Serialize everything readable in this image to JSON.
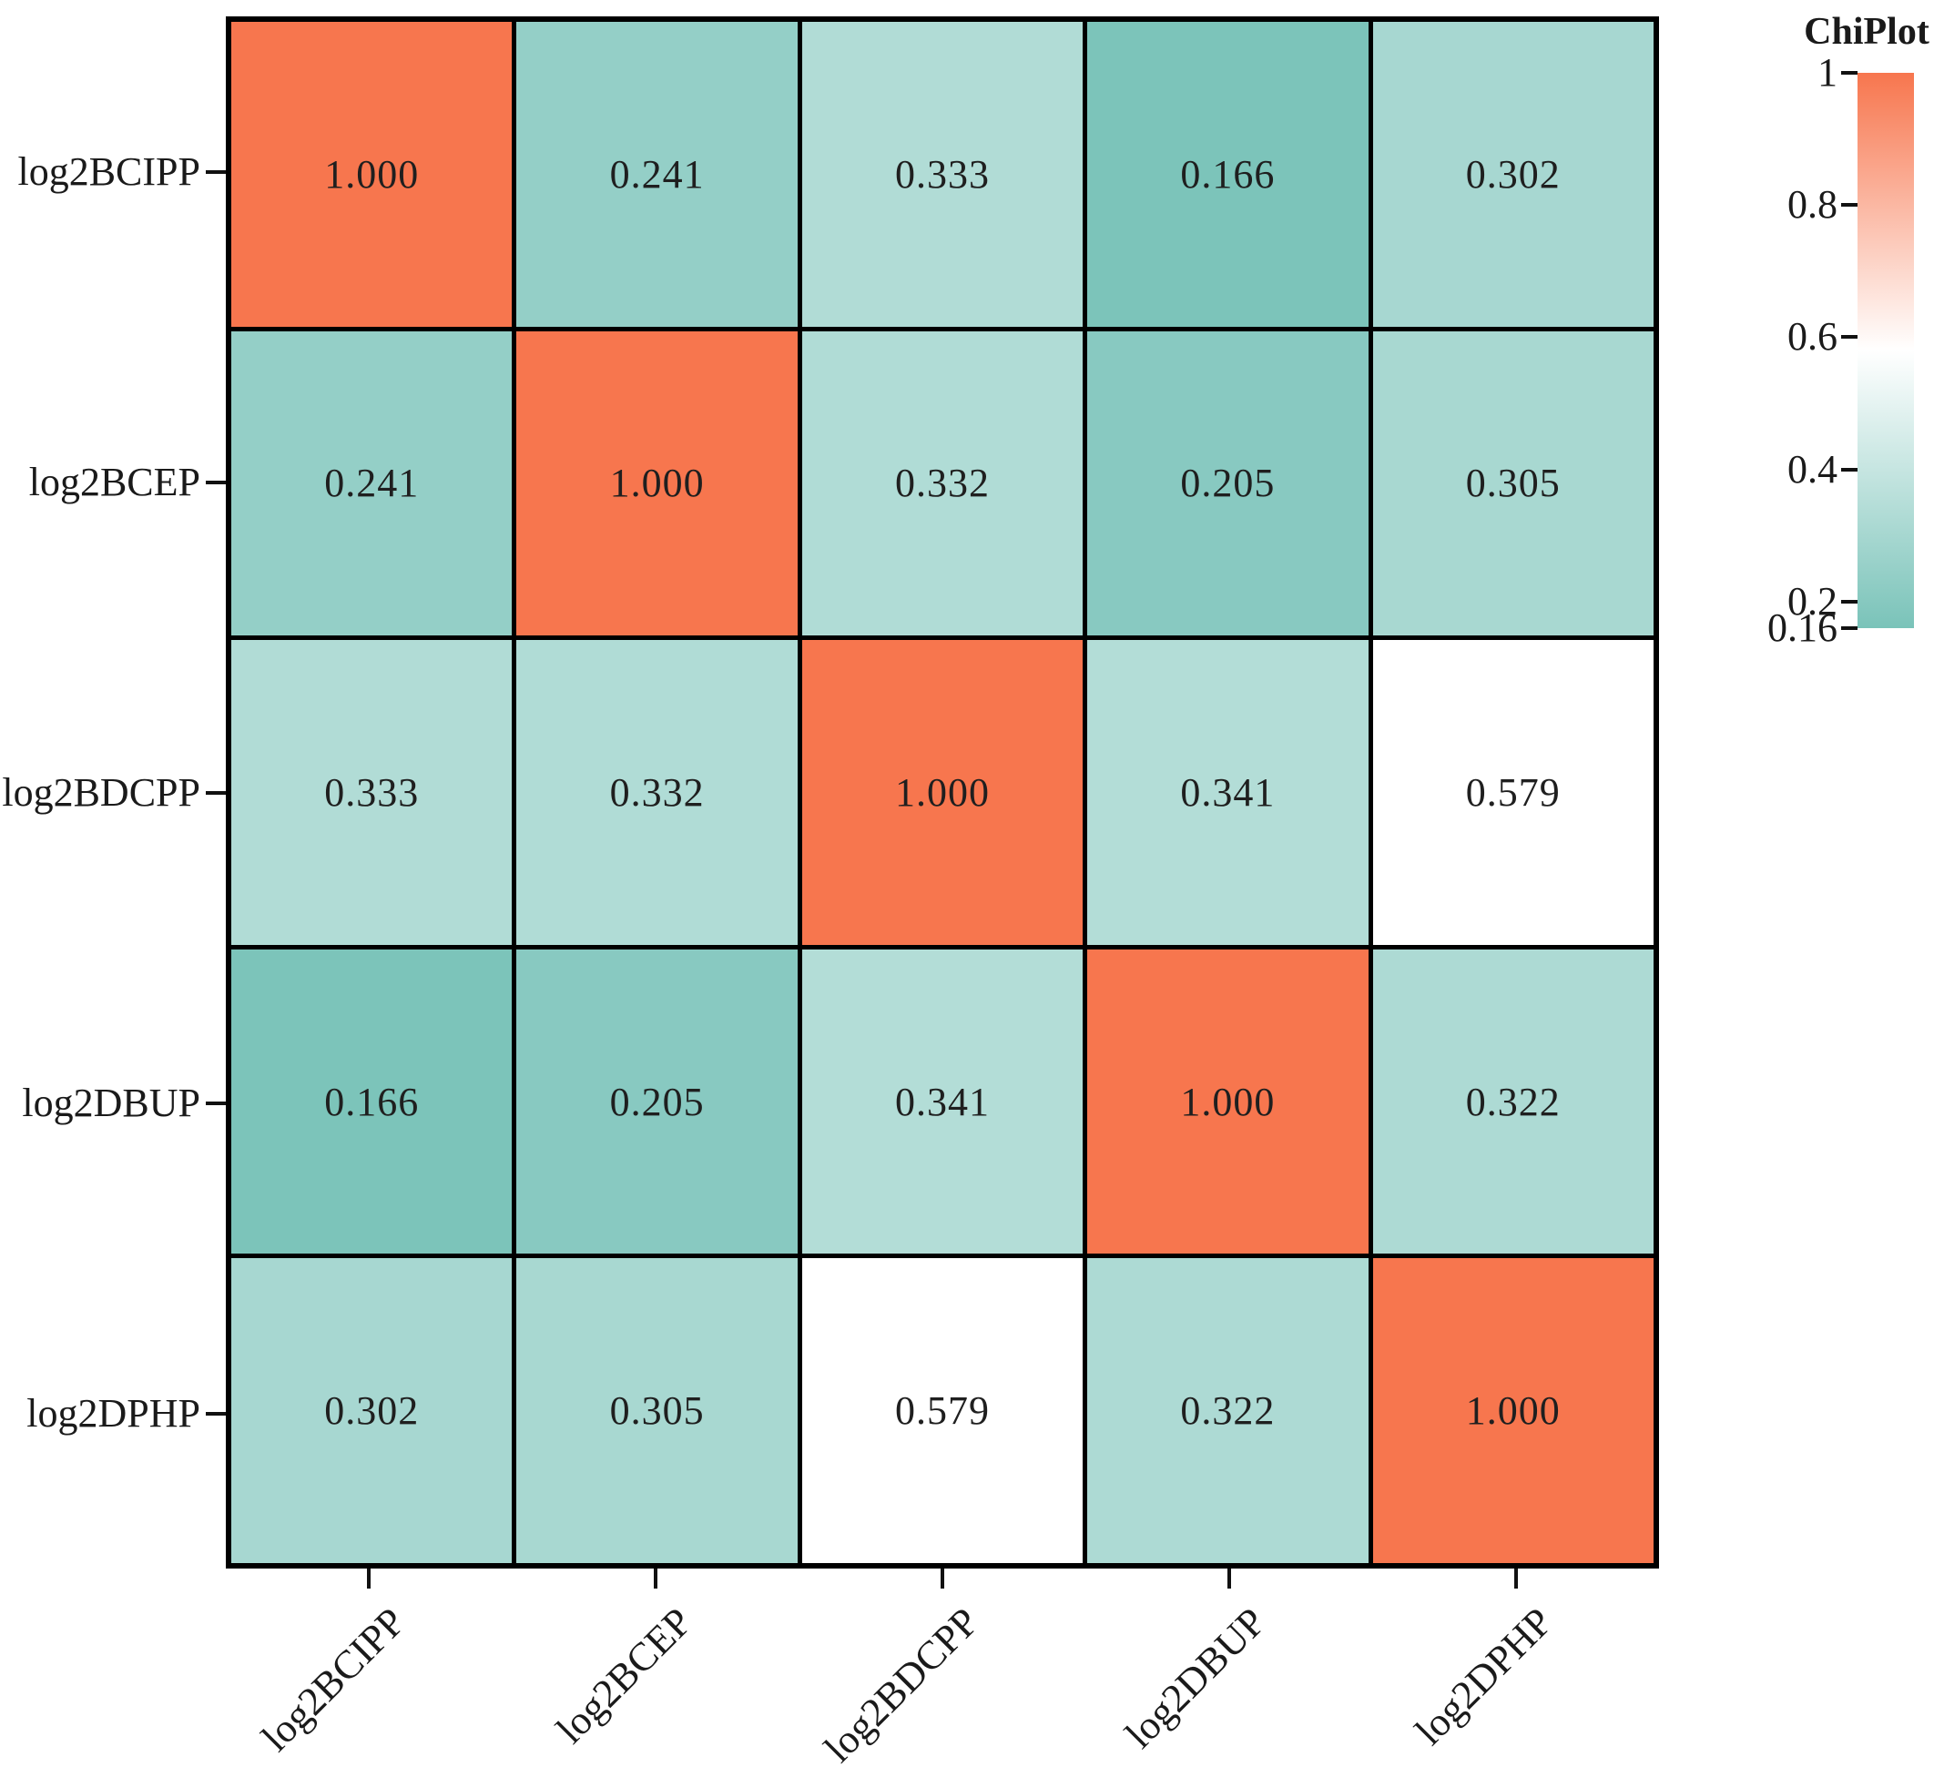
{
  "colorbar": {
    "title": "ChiPlot",
    "tick_labels": [
      "1",
      "0.8",
      "0.6",
      "0.4",
      "0.2",
      "0.16"
    ],
    "tick_values": [
      1,
      0.8,
      0.6,
      0.4,
      0.2,
      0.16
    ],
    "domain": [
      0.16,
      1
    ],
    "midpoint": 0.58,
    "colors": {
      "low": "#7AC3B9",
      "mid": "#FFFFFF",
      "high": "#F7764E"
    }
  },
  "colors": {
    "border": "#000000",
    "text": "#1A1A1A",
    "background": "#FFFFFF"
  },
  "chart_data": {
    "type": "heatmap",
    "title": "ChiPlot",
    "rows": [
      "log2BCIPP",
      "log2BCEP",
      "log2BDCPP",
      "log2DBUP",
      "log2DPHP"
    ],
    "cols": [
      "log2BCIPP",
      "log2BCEP",
      "log2BDCPP",
      "log2DBUP",
      "log2DPHP"
    ],
    "matrix": [
      [
        1.0,
        0.241,
        0.333,
        0.166,
        0.302
      ],
      [
        0.241,
        1.0,
        0.332,
        0.205,
        0.305
      ],
      [
        0.333,
        0.332,
        1.0,
        0.341,
        0.579
      ],
      [
        0.166,
        0.205,
        0.341,
        1.0,
        0.322
      ],
      [
        0.302,
        0.305,
        0.579,
        0.322,
        1.0
      ]
    ],
    "value_decimals": 3,
    "colorscale": {
      "low_value": 0.16,
      "low_color": "#7AC3B9",
      "mid_value": 0.58,
      "mid_color": "#FFFFFF",
      "high_value": 1.0,
      "high_color": "#F7764E"
    },
    "legend_title": "ChiPlot",
    "legend_ticks": [
      1,
      0.8,
      0.6,
      0.4,
      0.2,
      0.16
    ],
    "legend_position": "top-right",
    "grid_lines": "black",
    "x_tick_label_rotation_deg": 45
  }
}
